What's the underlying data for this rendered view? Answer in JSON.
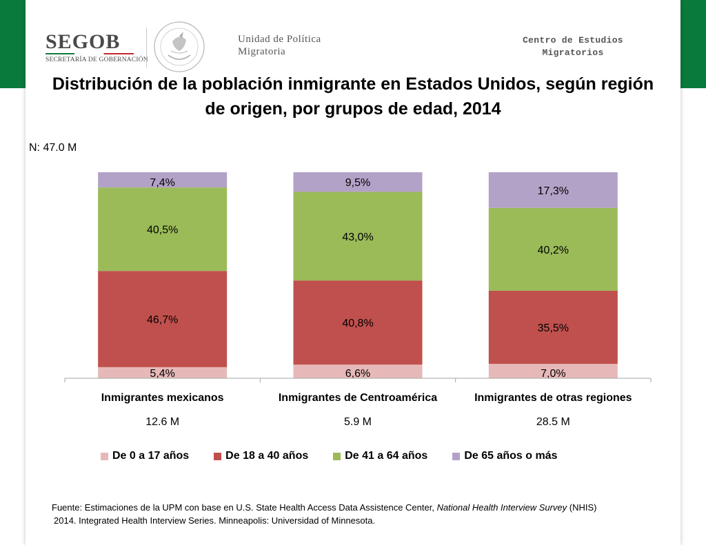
{
  "header": {
    "brand": "SEGOB",
    "brand_sub": "SECRETARÍA DE GOBERNACIÓN",
    "unit_line1": "Unidad de Política",
    "unit_line2": "Migratoria",
    "centro_line1": "Centro de Estudios",
    "centro_line2": "Migratorios"
  },
  "colors": {
    "band_green": "#0a7a3c",
    "rule_green": "#0a7a3c",
    "rule_red": "#c1272d",
    "age_0_17": "#e6b9b8",
    "age_18_40": "#c0504d",
    "age_41_64": "#9bbb59",
    "age_65_plus": "#b3a2c7"
  },
  "n_label": "N: 47.0 M",
  "chart_data": {
    "type": "bar",
    "stacked": true,
    "title": "Distribución de la población inmigrante en Estados Unidos, según región de origen, por grupos de edad, 2014",
    "categories": [
      "Inmigrantes mexicanos",
      "Inmigrantes de Centroamérica",
      "Inmigrantes de otras regiones"
    ],
    "category_totals": [
      "12.6 M",
      "5.9 M",
      "28.5 M"
    ],
    "ylim": [
      0,
      100
    ],
    "series": [
      {
        "name": "De 0 a 17 años",
        "values": [
          5.4,
          6.6,
          7.0
        ],
        "labels": [
          "5,4%",
          "6,6%",
          "7,0%"
        ]
      },
      {
        "name": "De 18 a 40 años",
        "values": [
          46.7,
          40.8,
          35.5
        ],
        "labels": [
          "46,7%",
          "40,8%",
          "35,5%"
        ]
      },
      {
        "name": "De 41 a 64 años",
        "values": [
          40.5,
          43.0,
          40.2
        ],
        "labels": [
          "40,5%",
          "43,0%",
          "40,2%"
        ]
      },
      {
        "name": "De 65 años o más",
        "values": [
          7.4,
          9.5,
          17.3
        ],
        "labels": [
          "7,4%",
          "9,5%",
          "17,3%"
        ]
      }
    ],
    "legend_position": "bottom"
  },
  "source": {
    "prefix": "Fuente: Estimaciones de la UPM con base en U.S. State Health Access Data Assistence Center, ",
    "survey": "National Health Interview Survey",
    "suffix": " (NHIS)",
    "line2": "2014. Integrated Health Interview Series. Minneapolis: Universidad of Minnesota."
  }
}
